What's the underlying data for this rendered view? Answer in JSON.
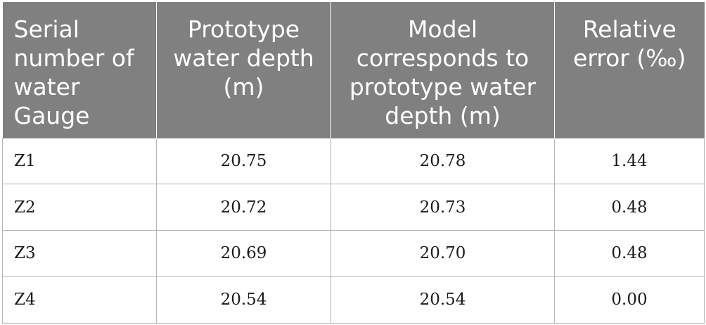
{
  "table": {
    "headers": [
      "Serial number of water Gauge",
      "Prototype water depth (m)",
      "Model corresponds to prototype water depth (m)",
      "Relative error (‰)"
    ],
    "rows": [
      [
        "Z1",
        "20.75",
        "20.78",
        "1.44"
      ],
      [
        "Z2",
        "20.72",
        "20.73",
        "0.48"
      ],
      [
        "Z3",
        "20.69",
        "20.70",
        "0.48"
      ],
      [
        "Z4",
        "20.54",
        "20.54",
        "0.00"
      ]
    ]
  },
  "colors": {
    "header_background": "#808080",
    "header_text": "#ffffff",
    "grid_line": "#b5b5b5",
    "body_text": "#1a1a1a"
  }
}
